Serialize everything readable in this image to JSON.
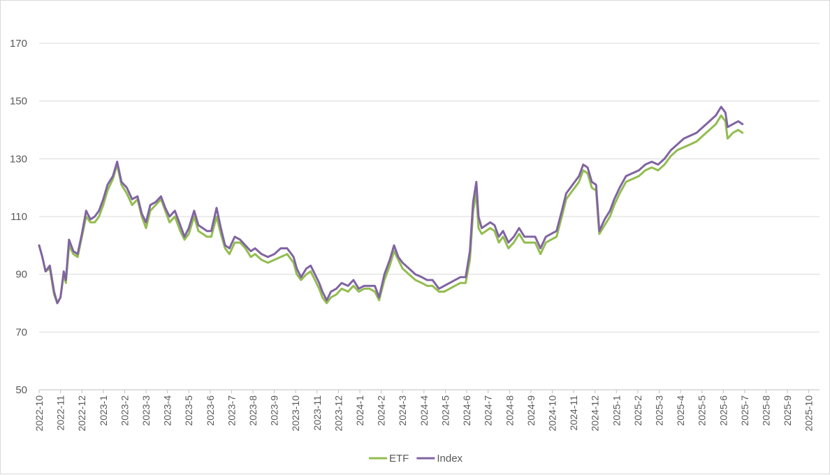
{
  "chart_data": {
    "type": "line",
    "ylim": [
      50,
      170
    ],
    "yticks": [
      50,
      70,
      90,
      110,
      130,
      150,
      170
    ],
    "grid": "horizontal",
    "legend_position": "bottom",
    "x_tick_labels": [
      "2022-10",
      "2022-11",
      "2022-12",
      "2023-1",
      "2023-2",
      "2023-3",
      "2023-4",
      "2023-5",
      "2023-6",
      "2023-7",
      "2023-8",
      "2023-9",
      "2023-10",
      "2023-11",
      "2023-12",
      "2024-1",
      "2024-2",
      "2024-3",
      "2024-4",
      "2024-5",
      "2024-6",
      "2024-7",
      "2024-8",
      "2024-9",
      "2024-10",
      "2024-11",
      "2024-12",
      "2025-1",
      "2025-2",
      "2025-3",
      "2025-4",
      "2025-5",
      "2025-6",
      "2025-7",
      "2025-8",
      "2025-9",
      "2025-10"
    ],
    "series": [
      {
        "name": "ETF",
        "color": "#92bd4f",
        "points": [
          [
            0,
            100
          ],
          [
            0.15,
            96
          ],
          [
            0.3,
            91
          ],
          [
            0.5,
            92
          ],
          [
            0.7,
            83
          ],
          [
            0.85,
            80
          ],
          [
            1.0,
            82
          ],
          [
            1.15,
            90
          ],
          [
            1.25,
            87
          ],
          [
            1.4,
            100
          ],
          [
            1.6,
            97
          ],
          [
            1.8,
            96
          ],
          [
            2.0,
            103
          ],
          [
            2.2,
            110
          ],
          [
            2.4,
            108
          ],
          [
            2.6,
            108
          ],
          [
            2.8,
            110
          ],
          [
            3.0,
            114
          ],
          [
            3.2,
            119
          ],
          [
            3.45,
            123
          ],
          [
            3.65,
            128
          ],
          [
            3.85,
            121
          ],
          [
            4.1,
            118
          ],
          [
            4.35,
            114
          ],
          [
            4.6,
            116
          ],
          [
            4.8,
            110
          ],
          [
            5.0,
            106
          ],
          [
            5.2,
            112
          ],
          [
            5.45,
            114
          ],
          [
            5.7,
            116
          ],
          [
            5.9,
            112
          ],
          [
            6.1,
            108
          ],
          [
            6.35,
            110
          ],
          [
            6.6,
            105
          ],
          [
            6.8,
            102
          ],
          [
            7.0,
            104
          ],
          [
            7.25,
            110
          ],
          [
            7.45,
            105
          ],
          [
            7.65,
            104
          ],
          [
            7.85,
            103
          ],
          [
            8.05,
            103
          ],
          [
            8.3,
            110
          ],
          [
            8.5,
            104
          ],
          [
            8.7,
            99
          ],
          [
            8.9,
            97
          ],
          [
            9.15,
            101
          ],
          [
            9.4,
            101
          ],
          [
            9.65,
            99
          ],
          [
            9.9,
            96
          ],
          [
            10.1,
            97
          ],
          [
            10.4,
            95
          ],
          [
            10.7,
            94
          ],
          [
            11.0,
            95
          ],
          [
            11.3,
            96
          ],
          [
            11.6,
            97
          ],
          [
            11.9,
            94
          ],
          [
            12.05,
            90
          ],
          [
            12.25,
            88
          ],
          [
            12.5,
            90
          ],
          [
            12.7,
            91
          ],
          [
            12.9,
            88
          ],
          [
            13.1,
            85
          ],
          [
            13.25,
            82
          ],
          [
            13.45,
            80
          ],
          [
            13.65,
            82
          ],
          [
            13.9,
            83
          ],
          [
            14.15,
            85
          ],
          [
            14.45,
            84
          ],
          [
            14.7,
            86
          ],
          [
            14.95,
            84
          ],
          [
            15.2,
            85
          ],
          [
            15.45,
            85
          ],
          [
            15.7,
            84
          ],
          [
            15.9,
            81
          ],
          [
            16.15,
            88
          ],
          [
            16.4,
            93
          ],
          [
            16.6,
            98
          ],
          [
            16.8,
            95
          ],
          [
            17.0,
            92
          ],
          [
            17.3,
            90
          ],
          [
            17.6,
            88
          ],
          [
            17.9,
            87
          ],
          [
            18.15,
            86
          ],
          [
            18.4,
            86
          ],
          [
            18.7,
            84
          ],
          [
            18.95,
            84
          ],
          [
            19.2,
            85
          ],
          [
            19.45,
            86
          ],
          [
            19.7,
            87
          ],
          [
            19.95,
            87
          ],
          [
            20.15,
            95
          ],
          [
            20.3,
            112
          ],
          [
            20.45,
            118
          ],
          [
            20.55,
            106
          ],
          [
            20.7,
            104
          ],
          [
            20.9,
            105
          ],
          [
            21.1,
            106
          ],
          [
            21.3,
            105
          ],
          [
            21.5,
            101
          ],
          [
            21.7,
            103
          ],
          [
            21.95,
            99
          ],
          [
            22.2,
            101
          ],
          [
            22.45,
            104
          ],
          [
            22.7,
            101
          ],
          [
            22.95,
            101
          ],
          [
            23.2,
            101
          ],
          [
            23.45,
            97
          ],
          [
            23.7,
            101
          ],
          [
            23.95,
            102
          ],
          [
            24.2,
            103
          ],
          [
            24.45,
            110
          ],
          [
            24.65,
            116
          ],
          [
            24.85,
            118
          ],
          [
            25.05,
            120
          ],
          [
            25.25,
            122
          ],
          [
            25.45,
            126
          ],
          [
            25.65,
            125
          ],
          [
            25.85,
            120
          ],
          [
            26.05,
            119
          ],
          [
            26.2,
            104
          ],
          [
            26.45,
            107
          ],
          [
            26.7,
            110
          ],
          [
            26.9,
            114
          ],
          [
            27.15,
            118
          ],
          [
            27.45,
            122
          ],
          [
            27.75,
            123
          ],
          [
            28.05,
            124
          ],
          [
            28.35,
            126
          ],
          [
            28.65,
            127
          ],
          [
            28.95,
            126
          ],
          [
            29.25,
            128
          ],
          [
            29.55,
            131
          ],
          [
            29.85,
            133
          ],
          [
            30.15,
            134
          ],
          [
            30.45,
            135
          ],
          [
            30.75,
            136
          ],
          [
            31.05,
            138
          ],
          [
            31.35,
            140
          ],
          [
            31.65,
            142
          ],
          [
            31.9,
            145
          ],
          [
            32.1,
            143
          ],
          [
            32.2,
            137
          ],
          [
            32.45,
            139
          ],
          [
            32.7,
            140
          ],
          [
            32.9,
            139
          ]
        ]
      },
      {
        "name": "Index",
        "color": "#8064a2",
        "points": [
          [
            0,
            100
          ],
          [
            0.15,
            96
          ],
          [
            0.3,
            91
          ],
          [
            0.5,
            93
          ],
          [
            0.7,
            84
          ],
          [
            0.85,
            80
          ],
          [
            1.0,
            82
          ],
          [
            1.15,
            91
          ],
          [
            1.25,
            88
          ],
          [
            1.4,
            102
          ],
          [
            1.6,
            98
          ],
          [
            1.8,
            97
          ],
          [
            2.0,
            104
          ],
          [
            2.2,
            112
          ],
          [
            2.4,
            109
          ],
          [
            2.6,
            110
          ],
          [
            2.8,
            112
          ],
          [
            3.0,
            116
          ],
          [
            3.2,
            121
          ],
          [
            3.45,
            124
          ],
          [
            3.65,
            129
          ],
          [
            3.85,
            122
          ],
          [
            4.1,
            120
          ],
          [
            4.35,
            116
          ],
          [
            4.6,
            117
          ],
          [
            4.8,
            111
          ],
          [
            5.0,
            108
          ],
          [
            5.2,
            114
          ],
          [
            5.45,
            115
          ],
          [
            5.7,
            117
          ],
          [
            5.9,
            113
          ],
          [
            6.1,
            110
          ],
          [
            6.35,
            112
          ],
          [
            6.6,
            107
          ],
          [
            6.8,
            103
          ],
          [
            7.0,
            106
          ],
          [
            7.25,
            112
          ],
          [
            7.45,
            107
          ],
          [
            7.65,
            106
          ],
          [
            7.85,
            105
          ],
          [
            8.05,
            105
          ],
          [
            8.3,
            113
          ],
          [
            8.5,
            106
          ],
          [
            8.7,
            100
          ],
          [
            8.9,
            99
          ],
          [
            9.15,
            103
          ],
          [
            9.4,
            102
          ],
          [
            9.65,
            100
          ],
          [
            9.9,
            98
          ],
          [
            10.1,
            99
          ],
          [
            10.4,
            97
          ],
          [
            10.7,
            96
          ],
          [
            11.0,
            97
          ],
          [
            11.3,
            99
          ],
          [
            11.6,
            99
          ],
          [
            11.9,
            96
          ],
          [
            12.05,
            92
          ],
          [
            12.25,
            89
          ],
          [
            12.5,
            92
          ],
          [
            12.7,
            93
          ],
          [
            12.9,
            90
          ],
          [
            13.1,
            87
          ],
          [
            13.25,
            84
          ],
          [
            13.45,
            81
          ],
          [
            13.65,
            84
          ],
          [
            13.9,
            85
          ],
          [
            14.15,
            87
          ],
          [
            14.45,
            86
          ],
          [
            14.7,
            88
          ],
          [
            14.95,
            85
          ],
          [
            15.2,
            86
          ],
          [
            15.45,
            86
          ],
          [
            15.7,
            86
          ],
          [
            15.9,
            82
          ],
          [
            16.15,
            90
          ],
          [
            16.4,
            95
          ],
          [
            16.6,
            100
          ],
          [
            16.8,
            96
          ],
          [
            17.0,
            94
          ],
          [
            17.3,
            92
          ],
          [
            17.6,
            90
          ],
          [
            17.9,
            89
          ],
          [
            18.15,
            88
          ],
          [
            18.4,
            88
          ],
          [
            18.7,
            85
          ],
          [
            18.95,
            86
          ],
          [
            19.2,
            87
          ],
          [
            19.45,
            88
          ],
          [
            19.7,
            89
          ],
          [
            19.95,
            89
          ],
          [
            20.15,
            98
          ],
          [
            20.3,
            115
          ],
          [
            20.45,
            122
          ],
          [
            20.55,
            110
          ],
          [
            20.7,
            106
          ],
          [
            20.9,
            107
          ],
          [
            21.1,
            108
          ],
          [
            21.3,
            107
          ],
          [
            21.5,
            103
          ],
          [
            21.7,
            105
          ],
          [
            21.95,
            101
          ],
          [
            22.2,
            103
          ],
          [
            22.45,
            106
          ],
          [
            22.7,
            103
          ],
          [
            22.95,
            103
          ],
          [
            23.2,
            103
          ],
          [
            23.45,
            99
          ],
          [
            23.7,
            103
          ],
          [
            23.95,
            104
          ],
          [
            24.2,
            105
          ],
          [
            24.45,
            112
          ],
          [
            24.65,
            118
          ],
          [
            24.85,
            120
          ],
          [
            25.05,
            122
          ],
          [
            25.25,
            124
          ],
          [
            25.45,
            128
          ],
          [
            25.65,
            127
          ],
          [
            25.85,
            122
          ],
          [
            26.05,
            121
          ],
          [
            26.2,
            105
          ],
          [
            26.45,
            109
          ],
          [
            26.7,
            112
          ],
          [
            26.9,
            116
          ],
          [
            27.15,
            120
          ],
          [
            27.45,
            124
          ],
          [
            27.75,
            125
          ],
          [
            28.05,
            126
          ],
          [
            28.35,
            128
          ],
          [
            28.65,
            129
          ],
          [
            28.95,
            128
          ],
          [
            29.25,
            130
          ],
          [
            29.55,
            133
          ],
          [
            29.85,
            135
          ],
          [
            30.15,
            137
          ],
          [
            30.45,
            138
          ],
          [
            30.75,
            139
          ],
          [
            31.05,
            141
          ],
          [
            31.35,
            143
          ],
          [
            31.65,
            145
          ],
          [
            31.9,
            148
          ],
          [
            32.1,
            146
          ],
          [
            32.2,
            141
          ],
          [
            32.45,
            142
          ],
          [
            32.7,
            143
          ],
          [
            32.9,
            142
          ]
        ]
      }
    ]
  }
}
